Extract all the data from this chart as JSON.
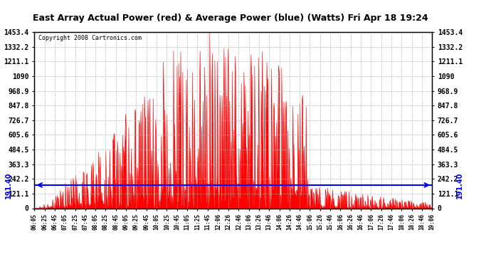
{
  "title": "East Array Actual Power (red) & Average Power (blue) (Watts) Fri Apr 18 19:24",
  "copyright": "Copyright 2008 Cartronics.com",
  "ymax": 1453.4,
  "ymin": 0.0,
  "yticks": [
    0.0,
    121.1,
    242.2,
    363.3,
    484.5,
    605.6,
    726.7,
    847.8,
    968.9,
    1090.0,
    1211.1,
    1332.2,
    1453.4
  ],
  "avg_line_y": 191.4,
  "avg_label": "191.40",
  "bg_color": "#ffffff",
  "bar_color": "#ff0000",
  "line_color": "#0000ff",
  "grid_color": "#aaaaaa",
  "xtick_labels": [
    "06:05",
    "06:25",
    "06:45",
    "07:05",
    "07:25",
    "07:45",
    "08:05",
    "08:25",
    "08:45",
    "09:05",
    "09:25",
    "09:45",
    "10:05",
    "10:25",
    "10:45",
    "11:05",
    "11:25",
    "11:45",
    "12:06",
    "12:26",
    "12:46",
    "13:06",
    "13:26",
    "13:46",
    "14:06",
    "14:26",
    "14:46",
    "15:06",
    "15:26",
    "15:46",
    "16:06",
    "16:26",
    "16:46",
    "17:06",
    "17:26",
    "17:46",
    "18:06",
    "18:26",
    "18:46",
    "19:06"
  ]
}
